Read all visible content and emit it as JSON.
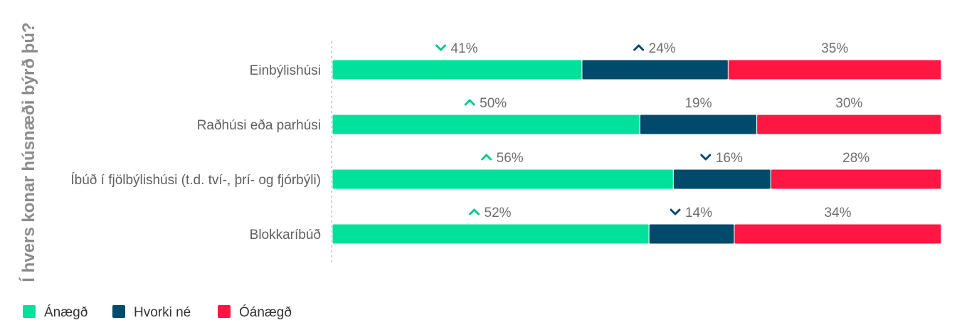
{
  "chart_data": {
    "type": "bar",
    "stacked": true,
    "orientation": "horizontal",
    "normalized_percent": true,
    "ylabel": "Í hvers konar húsnæði býrð þú?",
    "categories": [
      "Einbýlishúsi",
      "Raðhúsi eða parhúsi",
      "Íbúð í fjölbýlishúsi (t.d. tví-, þrí- og fjórbýli)",
      "Blokkaríbúð"
    ],
    "series": [
      {
        "name": "Ánægð",
        "color": "#00e19b",
        "values": [
          41,
          50,
          56,
          52
        ]
      },
      {
        "name": "Hvorki né",
        "color": "#004a6b",
        "values": [
          24,
          19,
          16,
          14
        ]
      },
      {
        "name": "Óánægð",
        "color": "#ff1744",
        "values": [
          35,
          30,
          28,
          34
        ]
      }
    ],
    "data_labels": [
      [
        "41%",
        "24%",
        "35%"
      ],
      [
        "50%",
        "19%",
        "30%"
      ],
      [
        "56%",
        "16%",
        "28%"
      ],
      [
        "52%",
        "14%",
        "34%"
      ]
    ],
    "trend_indicators": [
      [
        "down",
        "up",
        "none"
      ],
      [
        "up",
        "none",
        "none"
      ],
      [
        "up",
        "down",
        "none"
      ],
      [
        "up",
        "down",
        "none"
      ]
    ],
    "legend_position": "bottom-left",
    "grid": false
  }
}
